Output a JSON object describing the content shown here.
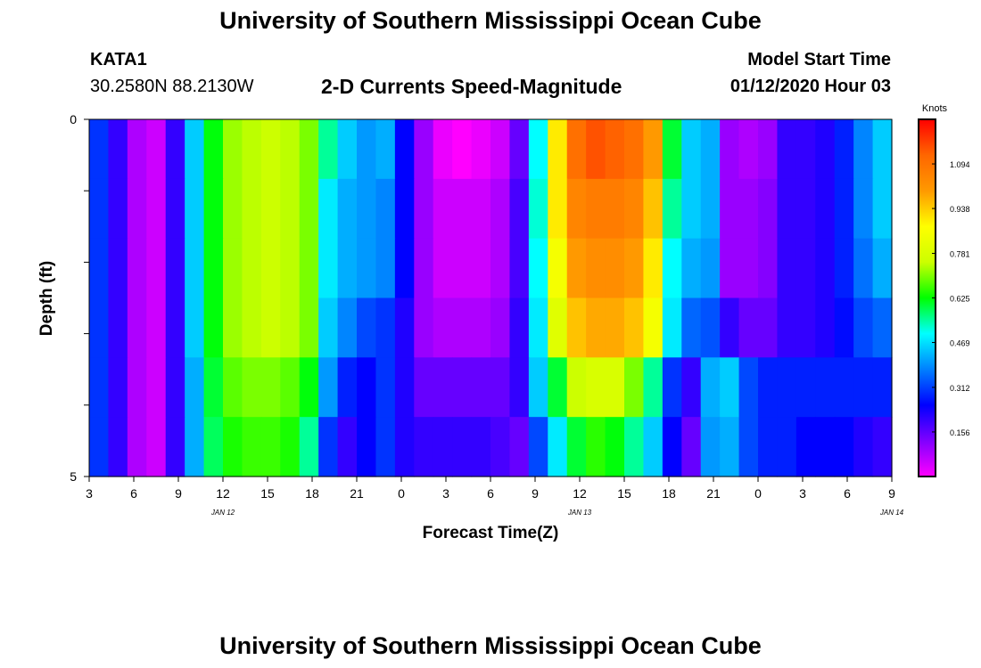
{
  "page": {
    "header_title": "University of Southern Mississippi Ocean Cube",
    "footer_title": "University of Southern Mississippi Ocean Cube",
    "station": "KATA1",
    "location": "30.2580N 88.2130W",
    "model_start_label": "Model Start Time",
    "model_start_value": "01/12/2020 Hour 03"
  },
  "chart_data": {
    "type": "heatmap",
    "title": "2-D Currents Speed-Magnitude",
    "xlabel": "Forecast Time(Z)",
    "ylabel": "Depth (ft)",
    "units": "Knots",
    "x_start_hour": 3,
    "x_end_hour": 57,
    "x_tick_labels": [
      "3",
      "6",
      "9",
      "12",
      "15",
      "18",
      "21",
      "0",
      "3",
      "6",
      "9",
      "12",
      "15",
      "18",
      "21",
      "0",
      "3",
      "6",
      "9"
    ],
    "date_labels": [
      {
        "text": "JAN 12",
        "hour": 12
      },
      {
        "text": "JAN 13",
        "hour": 36
      },
      {
        "text": "JAN 14",
        "hour": 57
      }
    ],
    "depth_labels": [
      "0",
      "5"
    ],
    "depth_range_ft": [
      0,
      5
    ],
    "colorbar_range": [
      0,
      1.25
    ],
    "colorbar_ticks": [
      "1.094",
      "0.938",
      "0.781",
      "0.625",
      "0.469",
      "0.312",
      "0.156"
    ],
    "colorbar_tick_values": [
      1.094,
      0.938,
      0.781,
      0.625,
      0.469,
      0.312,
      0.156
    ],
    "rows_surface_to_bottom": [
      [
        0.3,
        0.2,
        0.08,
        0.05,
        0.2,
        0.45,
        0.62,
        0.72,
        0.74,
        0.75,
        0.74,
        0.7,
        0.55,
        0.45,
        0.4,
        0.42,
        0.25,
        0.1,
        0.02,
        0.0,
        0.02,
        0.05,
        0.15,
        0.5,
        0.9,
        1.1,
        1.15,
        1.13,
        1.1,
        1.0,
        0.6,
        0.45,
        0.42,
        0.1,
        0.08,
        0.1,
        0.2,
        0.2,
        0.22,
        0.28,
        0.38,
        0.45
      ],
      [
        0.3,
        0.2,
        0.08,
        0.05,
        0.2,
        0.45,
        0.62,
        0.72,
        0.74,
        0.75,
        0.74,
        0.7,
        0.48,
        0.42,
        0.4,
        0.38,
        0.25,
        0.1,
        0.05,
        0.05,
        0.05,
        0.08,
        0.18,
        0.52,
        0.9,
        1.05,
        1.07,
        1.07,
        1.05,
        0.95,
        0.55,
        0.45,
        0.42,
        0.1,
        0.1,
        0.12,
        0.2,
        0.2,
        0.22,
        0.28,
        0.38,
        0.45
      ],
      [
        0.3,
        0.2,
        0.08,
        0.05,
        0.2,
        0.45,
        0.62,
        0.72,
        0.74,
        0.75,
        0.74,
        0.7,
        0.48,
        0.42,
        0.4,
        0.38,
        0.25,
        0.1,
        0.05,
        0.05,
        0.05,
        0.08,
        0.18,
        0.5,
        0.85,
        1.0,
        1.03,
        1.03,
        1.0,
        0.9,
        0.5,
        0.42,
        0.4,
        0.1,
        0.1,
        0.12,
        0.2,
        0.2,
        0.22,
        0.28,
        0.36,
        0.42
      ],
      [
        0.3,
        0.2,
        0.08,
        0.05,
        0.2,
        0.45,
        0.62,
        0.72,
        0.74,
        0.75,
        0.74,
        0.7,
        0.45,
        0.38,
        0.32,
        0.3,
        0.22,
        0.1,
        0.08,
        0.08,
        0.08,
        0.1,
        0.2,
        0.48,
        0.8,
        0.95,
        0.98,
        0.98,
        0.95,
        0.85,
        0.48,
        0.35,
        0.33,
        0.2,
        0.15,
        0.15,
        0.2,
        0.2,
        0.22,
        0.26,
        0.32,
        0.35
      ],
      [
        0.3,
        0.2,
        0.08,
        0.05,
        0.2,
        0.42,
        0.6,
        0.68,
        0.7,
        0.7,
        0.68,
        0.62,
        0.4,
        0.28,
        0.25,
        0.3,
        0.22,
        0.15,
        0.15,
        0.15,
        0.15,
        0.15,
        0.2,
        0.45,
        0.6,
        0.75,
        0.78,
        0.78,
        0.7,
        0.55,
        0.3,
        0.2,
        0.42,
        0.45,
        0.32,
        0.28,
        0.28,
        0.28,
        0.28,
        0.28,
        0.28,
        0.28
      ],
      [
        0.3,
        0.2,
        0.08,
        0.05,
        0.2,
        0.42,
        0.58,
        0.64,
        0.66,
        0.66,
        0.64,
        0.55,
        0.3,
        0.2,
        0.25,
        0.3,
        0.22,
        0.2,
        0.2,
        0.2,
        0.2,
        0.18,
        0.15,
        0.32,
        0.48,
        0.6,
        0.65,
        0.62,
        0.55,
        0.45,
        0.25,
        0.15,
        0.4,
        0.42,
        0.32,
        0.28,
        0.28,
        0.25,
        0.25,
        0.25,
        0.22,
        0.2
      ]
    ]
  }
}
